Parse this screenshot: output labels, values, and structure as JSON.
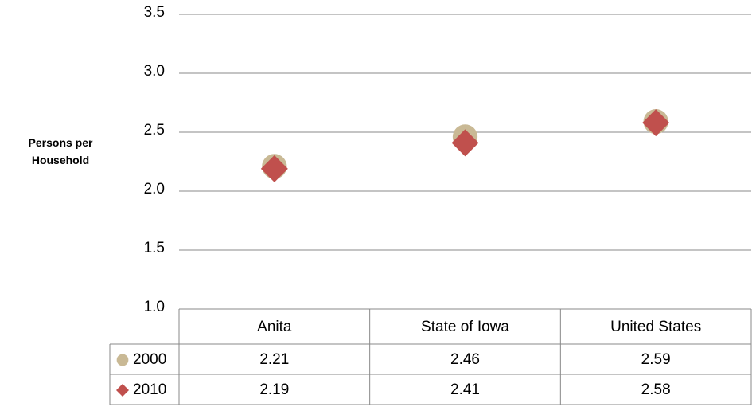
{
  "chart_data": {
    "type": "scatter",
    "y_label": "Persons per Household",
    "categories": [
      "Anita",
      "State of Iowa",
      "United States"
    ],
    "series": [
      {
        "name": "2000",
        "color": "#c9b995",
        "marker": "circle",
        "values": [
          2.21,
          2.46,
          2.59
        ]
      },
      {
        "name": "2010",
        "color": "#c0504d",
        "marker": "diamond",
        "values": [
          2.19,
          2.41,
          2.58
        ]
      }
    ],
    "ylim": [
      1.0,
      3.5
    ],
    "yticks": [
      {
        "value": 1,
        "label": "1.0"
      },
      1.5,
      {
        "value": 2,
        "label": "2.0"
      },
      2.5,
      {
        "value": 3,
        "label": "3.0"
      },
      3.5
    ],
    "grid": true,
    "data_table": true
  }
}
